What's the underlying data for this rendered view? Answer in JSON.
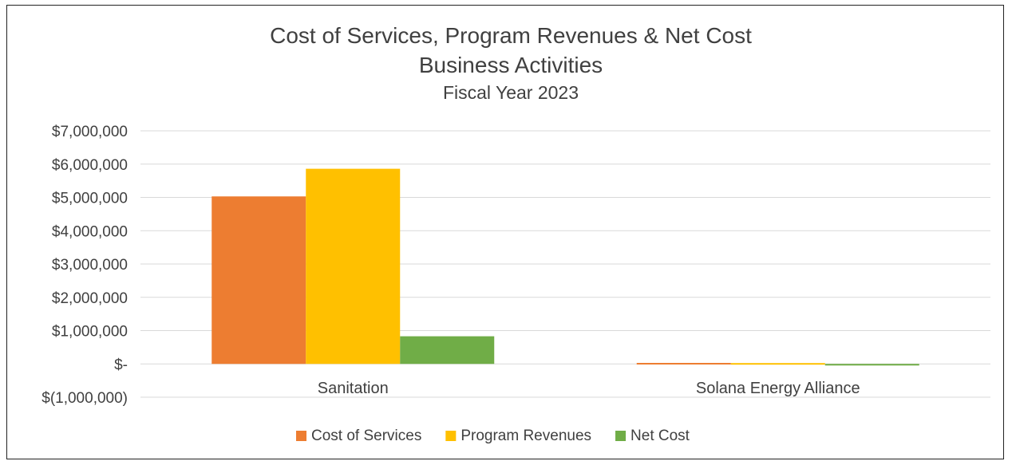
{
  "chart_data": {
    "type": "bar",
    "title": "Cost of Services, Program Revenues & Net Cost",
    "subtitle": "Business Activities",
    "subtitle2": "Fiscal Year 2023",
    "categories": [
      "Sanitation",
      "Solana Energy Alliance"
    ],
    "series": [
      {
        "name": "Cost of Services",
        "color": "#ED7D31",
        "values": [
          5030000,
          30000
        ]
      },
      {
        "name": "Program Revenues",
        "color": "#FFC000",
        "values": [
          5860000,
          25000
        ]
      },
      {
        "name": "Net Cost",
        "color": "#70AD47",
        "values": [
          830000,
          -5000
        ]
      }
    ],
    "ylim": [
      -1000000,
      7000000
    ],
    "yticks": [
      7000000,
      6000000,
      5000000,
      4000000,
      3000000,
      2000000,
      1000000,
      0,
      -1000000
    ],
    "ytick_labels": [
      "$7,000,000",
      "$6,000,000",
      "$5,000,000",
      "$4,000,000",
      "$3,000,000",
      "$2,000,000",
      "$1,000,000",
      "$-",
      "$(1,000,000)"
    ],
    "grid": true,
    "legend_position": "bottom"
  }
}
